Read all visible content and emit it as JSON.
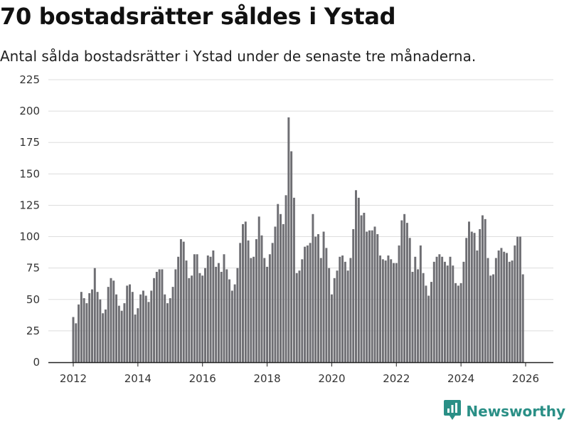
{
  "chart_data": {
    "type": "bar",
    "title": "70 bostadsrätter såldes i Ystad",
    "subtitle": "Antal sålda bostadsrätter i Ystad under de senaste tre månaderna.",
    "xlabel": "",
    "ylabel": "",
    "ylim": [
      0,
      225
    ],
    "y_ticks": [
      0,
      25,
      50,
      75,
      100,
      125,
      150,
      175,
      200,
      225
    ],
    "x_tick_labels": [
      "2012",
      "2014",
      "2016",
      "2018",
      "2020",
      "2022",
      "2024",
      "2026"
    ],
    "x_start": 2012.0,
    "x_end": 2026.0,
    "step_years": 0.083333,
    "grid": true,
    "bar_color": "#6e6e73",
    "highlight_color": "#2a8f86",
    "annotation": "70",
    "values": [
      36,
      31,
      46,
      56,
      51,
      47,
      55,
      58,
      75,
      56,
      50,
      39,
      42,
      60,
      67,
      65,
      54,
      45,
      41,
      47,
      61,
      62,
      56,
      38,
      43,
      54,
      57,
      53,
      48,
      57,
      67,
      72,
      74,
      74,
      54,
      47,
      51,
      60,
      74,
      84,
      98,
      96,
      81,
      67,
      69,
      86,
      86,
      71,
      69,
      75,
      85,
      84,
      89,
      76,
      79,
      72,
      86,
      74,
      66,
      57,
      62,
      75,
      95,
      110,
      112,
      97,
      83,
      84,
      98,
      116,
      101,
      83,
      76,
      86,
      95,
      108,
      126,
      118,
      110,
      133,
      195,
      168,
      131,
      71,
      73,
      82,
      92,
      93,
      95,
      118,
      100,
      102,
      83,
      104,
      91,
      75,
      54,
      67,
      73,
      84,
      85,
      80,
      73,
      83,
      106,
      137,
      131,
      117,
      119,
      104,
      105,
      105,
      108,
      102,
      85,
      82,
      81,
      85,
      82,
      79,
      79,
      93,
      113,
      118,
      111,
      99,
      72,
      84,
      74,
      93,
      71,
      61,
      53,
      64,
      80,
      84,
      86,
      84,
      80,
      77,
      84,
      77,
      63,
      61,
      63,
      80,
      99,
      112,
      104,
      103,
      89,
      106,
      117,
      114,
      83,
      69,
      70,
      83,
      89,
      91,
      88,
      87,
      80,
      81,
      93,
      100,
      100,
      70
    ],
    "highlight_indices": [
      168
    ]
  },
  "brand": {
    "name": "Newsworthy",
    "icon": "newsworthy-logo-icon",
    "color": "#2a8f86"
  }
}
